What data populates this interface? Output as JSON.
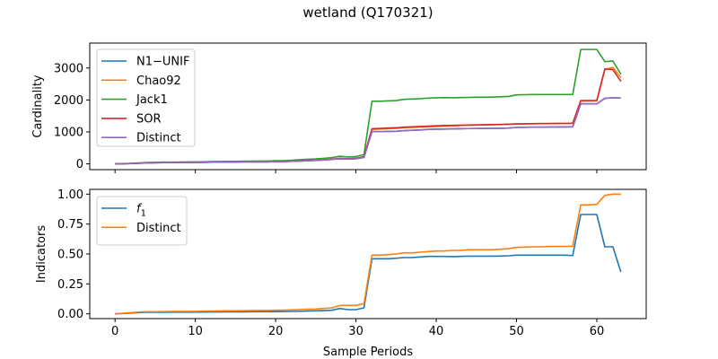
{
  "figure": {
    "title": "wetland (Q170321)",
    "xlabel": "Sample Periods"
  },
  "colors": {
    "blue": "#1f77b4",
    "orange": "#ff7f0e",
    "green": "#2ca02c",
    "red": "#d62728",
    "purple": "#9467bd"
  },
  "chart_data": [
    {
      "type": "line",
      "ylabel": "Cardinality",
      "xlim": [
        -3.15,
        66.15
      ],
      "ylim": [
        -180,
        3780
      ],
      "xticks": [
        0,
        10,
        20,
        30,
        40,
        50,
        60
      ],
      "yticks": [
        0,
        1000,
        2000,
        3000
      ],
      "ytick_labels": [
        "0",
        "1000",
        "2000",
        "3000"
      ],
      "legend": "upper-left",
      "x": [
        0,
        1,
        2,
        3,
        4,
        5,
        6,
        7,
        8,
        9,
        10,
        11,
        12,
        13,
        14,
        15,
        16,
        17,
        18,
        19,
        20,
        21,
        22,
        23,
        24,
        25,
        26,
        27,
        28,
        29,
        30,
        31,
        32,
        33,
        34,
        35,
        36,
        37,
        38,
        39,
        40,
        41,
        42,
        43,
        44,
        45,
        46,
        47,
        48,
        49,
        50,
        51,
        52,
        53,
        54,
        55,
        56,
        57,
        58,
        59,
        60,
        61,
        62,
        63
      ],
      "series": [
        {
          "name": "N1−UNIF",
          "color": "#1f77b4",
          "values": [
            0,
            5,
            10,
            20,
            30,
            35,
            40,
            40,
            42,
            42,
            45,
            48,
            52,
            55,
            58,
            60,
            62,
            63,
            64,
            65,
            70,
            72,
            80,
            90,
            100,
            110,
            125,
            140,
            160,
            150,
            160,
            200,
            1010,
            1010,
            1015,
            1020,
            1040,
            1050,
            1060,
            1080,
            1085,
            1090,
            1095,
            1100,
            1105,
            1108,
            1110,
            1112,
            1115,
            1120,
            1140,
            1145,
            1148,
            1150,
            1152,
            1155,
            1156,
            1160,
            1880,
            1880,
            1880,
            2050,
            2070,
            2060
          ]
        },
        {
          "name": "Chao92",
          "color": "#ff7f0e",
          "values": [
            0,
            5,
            10,
            20,
            30,
            35,
            40,
            40,
            42,
            42,
            45,
            48,
            52,
            55,
            58,
            60,
            62,
            63,
            64,
            65,
            70,
            72,
            80,
            90,
            100,
            110,
            125,
            140,
            170,
            160,
            170,
            220,
            1080,
            1090,
            1100,
            1110,
            1130,
            1140,
            1150,
            1160,
            1170,
            1180,
            1190,
            1200,
            1210,
            1215,
            1220,
            1225,
            1230,
            1240,
            1250,
            1255,
            1258,
            1260,
            1262,
            1265,
            1266,
            1270,
            1970,
            1970,
            1975,
            2950,
            3020,
            2700
          ]
        },
        {
          "name": "Jack1",
          "color": "#2ca02c",
          "values": [
            0,
            10,
            15,
            30,
            45,
            50,
            55,
            55,
            58,
            60,
            62,
            66,
            70,
            75,
            78,
            80,
            85,
            87,
            88,
            90,
            98,
            100,
            115,
            130,
            145,
            155,
            175,
            195,
            240,
            215,
            230,
            290,
            1960,
            1960,
            1970,
            1980,
            2020,
            2030,
            2040,
            2060,
            2070,
            2075,
            2070,
            2075,
            2080,
            2085,
            2085,
            2090,
            2100,
            2110,
            2160,
            2165,
            2170,
            2170,
            2170,
            2170,
            2170,
            2170,
            3580,
            3580,
            3580,
            3200,
            3220,
            2800
          ]
        },
        {
          "name": "SOR",
          "color": "#d62728",
          "values": [
            0,
            5,
            10,
            20,
            30,
            35,
            40,
            40,
            42,
            42,
            45,
            48,
            52,
            55,
            58,
            60,
            62,
            63,
            64,
            65,
            72,
            74,
            82,
            94,
            104,
            114,
            128,
            145,
            175,
            160,
            175,
            225,
            1100,
            1110,
            1120,
            1130,
            1150,
            1160,
            1170,
            1180,
            1190,
            1200,
            1205,
            1210,
            1215,
            1220,
            1225,
            1230,
            1235,
            1240,
            1250,
            1255,
            1258,
            1260,
            1262,
            1265,
            1266,
            1270,
            1980,
            1980,
            1985,
            2970,
            2950,
            2580
          ]
        },
        {
          "name": "Distinct",
          "color": "#9467bd",
          "values": [
            0,
            5,
            10,
            20,
            30,
            35,
            40,
            40,
            42,
            42,
            45,
            48,
            52,
            55,
            58,
            60,
            62,
            63,
            64,
            65,
            70,
            72,
            80,
            90,
            100,
            110,
            125,
            140,
            160,
            150,
            160,
            200,
            1010,
            1010,
            1015,
            1020,
            1040,
            1050,
            1060,
            1080,
            1085,
            1090,
            1095,
            1100,
            1105,
            1108,
            1110,
            1112,
            1115,
            1120,
            1140,
            1145,
            1148,
            1150,
            1152,
            1155,
            1156,
            1160,
            1880,
            1880,
            1880,
            2050,
            2070,
            2060
          ]
        }
      ]
    },
    {
      "type": "line",
      "ylabel": "Indicators",
      "xlabel": "Sample Periods",
      "xlim": [
        -3.15,
        66.15
      ],
      "ylim": [
        -0.04,
        1.04
      ],
      "xticks": [
        0,
        10,
        20,
        30,
        40,
        50,
        60
      ],
      "yticks": [
        0,
        0.25,
        0.5,
        0.75,
        1.0
      ],
      "ytick_labels": [
        "0.00",
        "0.25",
        "0.50",
        "0.75",
        "1.00"
      ],
      "legend": "upper-left",
      "x": [
        0,
        1,
        2,
        3,
        4,
        5,
        6,
        7,
        8,
        9,
        10,
        11,
        12,
        13,
        14,
        15,
        16,
        17,
        18,
        19,
        20,
        21,
        22,
        23,
        24,
        25,
        26,
        27,
        28,
        29,
        30,
        31,
        32,
        33,
        34,
        35,
        36,
        37,
        38,
        39,
        40,
        41,
        42,
        43,
        44,
        45,
        46,
        47,
        48,
        49,
        50,
        51,
        52,
        53,
        54,
        55,
        56,
        57,
        58,
        59,
        60,
        61,
        62,
        63
      ],
      "series": [
        {
          "name": "f",
          "name_sub": "1",
          "color": "#1f77b4",
          "values": [
            0.0,
            0.003,
            0.006,
            0.01,
            0.013,
            0.013,
            0.013,
            0.014,
            0.014,
            0.014,
            0.015,
            0.015,
            0.016,
            0.016,
            0.017,
            0.017,
            0.017,
            0.018,
            0.018,
            0.018,
            0.018,
            0.019,
            0.02,
            0.021,
            0.023,
            0.025,
            0.027,
            0.03,
            0.045,
            0.035,
            0.035,
            0.05,
            0.46,
            0.46,
            0.46,
            0.465,
            0.47,
            0.47,
            0.475,
            0.48,
            0.48,
            0.48,
            0.478,
            0.48,
            0.482,
            0.482,
            0.482,
            0.482,
            0.483,
            0.485,
            0.49,
            0.49,
            0.49,
            0.49,
            0.49,
            0.49,
            0.49,
            0.487,
            0.83,
            0.83,
            0.83,
            0.56,
            0.56,
            0.35
          ]
        },
        {
          "name": "Distinct",
          "color": "#ff7f0e",
          "values": [
            0.0,
            0.005,
            0.01,
            0.015,
            0.018,
            0.018,
            0.019,
            0.02,
            0.02,
            0.02,
            0.021,
            0.022,
            0.023,
            0.024,
            0.025,
            0.025,
            0.026,
            0.027,
            0.028,
            0.028,
            0.03,
            0.031,
            0.033,
            0.036,
            0.038,
            0.04,
            0.045,
            0.05,
            0.07,
            0.07,
            0.07,
            0.085,
            0.49,
            0.49,
            0.495,
            0.5,
            0.51,
            0.51,
            0.515,
            0.52,
            0.525,
            0.525,
            0.53,
            0.53,
            0.535,
            0.535,
            0.535,
            0.535,
            0.54,
            0.545,
            0.555,
            0.558,
            0.56,
            0.56,
            0.562,
            0.563,
            0.563,
            0.565,
            0.91,
            0.91,
            0.915,
            0.99,
            1.0,
            1.0
          ]
        }
      ]
    }
  ]
}
